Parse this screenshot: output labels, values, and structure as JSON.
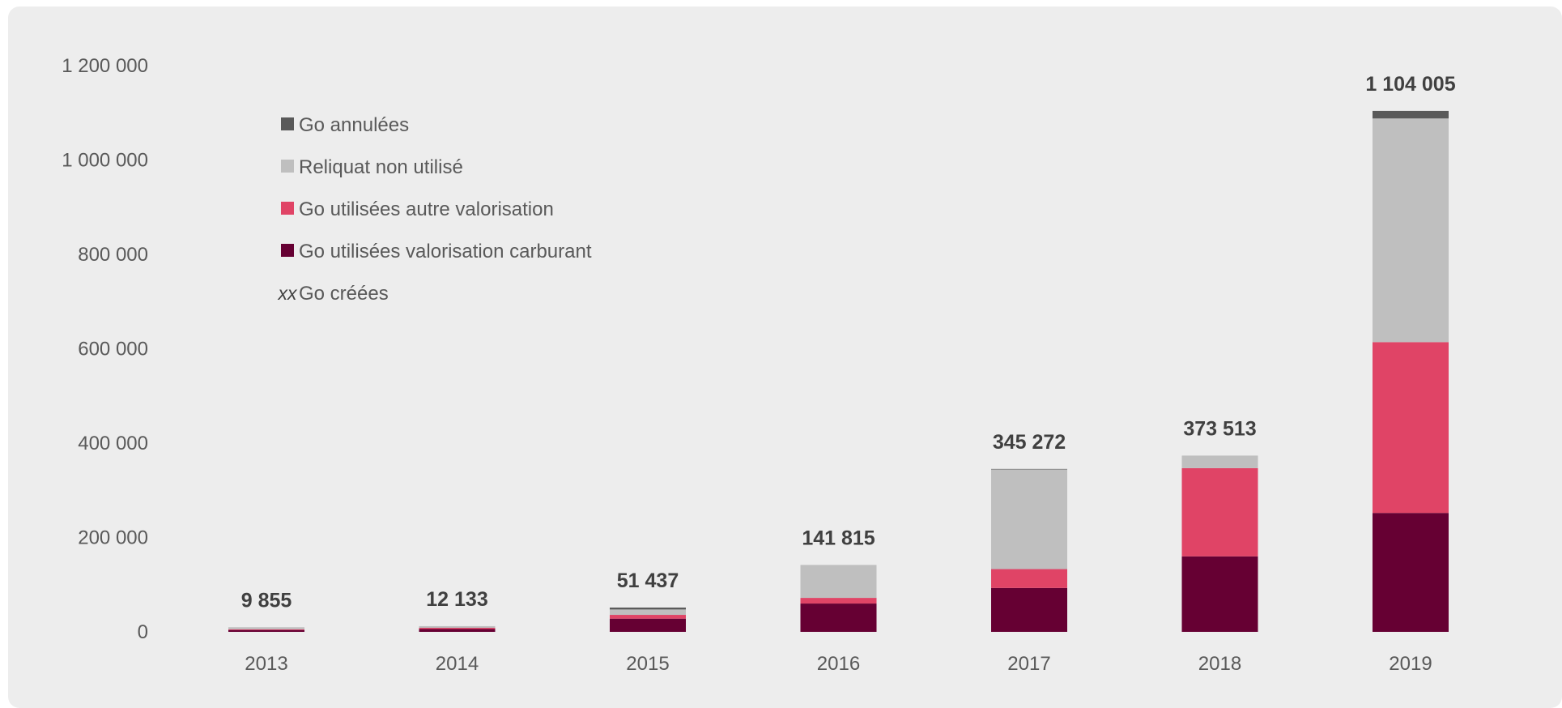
{
  "chart_data": {
    "type": "bar",
    "stacked": true,
    "categories": [
      "2013",
      "2014",
      "2015",
      "2016",
      "2017",
      "2018",
      "2019"
    ],
    "series": [
      {
        "name": "Go utilisées valorisation carburant",
        "color": "#660033",
        "values": [
          4000,
          6000,
          28000,
          60000,
          93000,
          160000,
          252000
        ]
      },
      {
        "name": "Go utilisées autre valorisation",
        "color": "#e04466",
        "values": [
          1500,
          2500,
          8000,
          12000,
          40000,
          187000,
          362000
        ]
      },
      {
        "name": "Reliquat non utilisé",
        "color": "#bfbfbf",
        "values": [
          4355,
          3633,
          11437,
          69815,
          211272,
          26513,
          474005
        ]
      },
      {
        "name": "Go annulées",
        "color": "#595959",
        "values": [
          0,
          0,
          4000,
          0,
          1000,
          0,
          16000
        ]
      }
    ],
    "totals": [
      "9 855",
      "12 133",
      "51 437",
      "141 815",
      "345 272",
      "373 513",
      "1 104 005"
    ],
    "total_values": [
      9855,
      12133,
      51437,
      141815,
      345272,
      373513,
      1104005
    ],
    "yticks": [
      0,
      200000,
      400000,
      600000,
      800000,
      1000000,
      1200000
    ],
    "ytick_labels": [
      "0",
      "200 000",
      "400 000",
      "600 000",
      "800 000",
      "1 000 000",
      "1 200 000"
    ],
    "ylim": [
      0,
      1200000
    ],
    "grid": false,
    "legend": {
      "placement": "top-left",
      "items": [
        {
          "label": "Go annulées",
          "color": "#595959"
        },
        {
          "label": "Reliquat non utilisé",
          "color": "#bfbfbf"
        },
        {
          "label": "Go utilisées autre valorisation",
          "color": "#e04466"
        },
        {
          "label": "Go utilisées valorisation carburant",
          "color": "#660033"
        }
      ],
      "totals_marker": "xx",
      "totals_label": "Go créées"
    }
  }
}
